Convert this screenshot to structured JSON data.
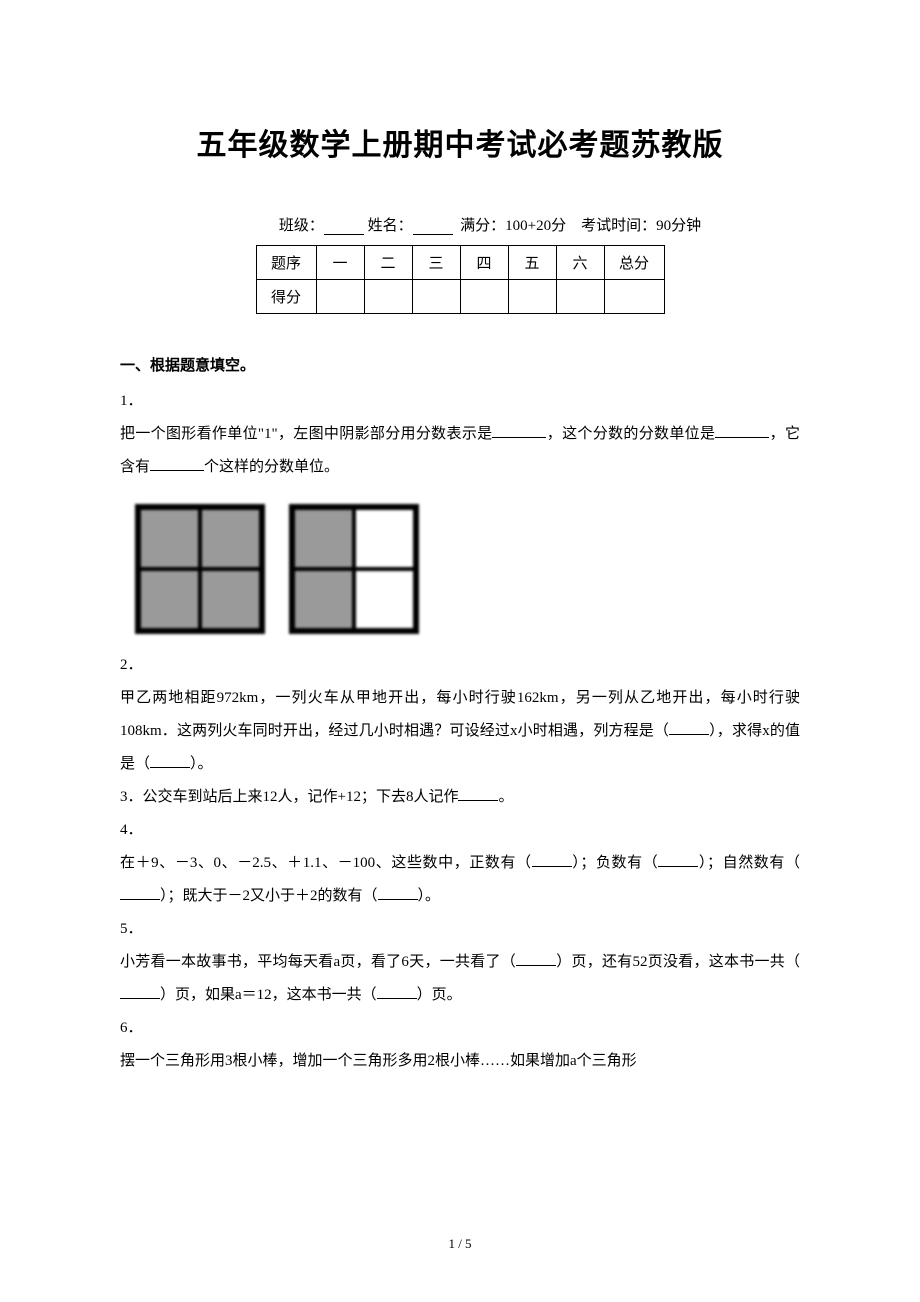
{
  "title": "五年级数学上册期中考试必考题苏教版",
  "info_line": {
    "class_label": "班级：",
    "name_label": "姓名：",
    "full_score_label": "满分：100+20分",
    "time_label": "考试时间：90分钟"
  },
  "score_table": {
    "row1": [
      "题序",
      "一",
      "二",
      "三",
      "四",
      "五",
      "六",
      "总分"
    ],
    "row2_label": "得分"
  },
  "section1_heading": "一、根据题意填空。",
  "q1": {
    "num": "1．",
    "text_a": "把一个图形看作单位\"1\"，左图中阴影部分用分数表示是",
    "text_b": "，这个分数的分数单位是",
    "text_c": "，它含有",
    "text_d": "个这样的分数单位。"
  },
  "figure": {
    "left": {
      "cells": [
        true,
        true,
        true,
        true
      ],
      "border_color": "#000000",
      "shade_color": "#9a9a9a",
      "bg_color": "#ffffff"
    },
    "right": {
      "cells": [
        true,
        false,
        true,
        false
      ],
      "border_color": "#000000",
      "shade_color": "#9a9a9a",
      "bg_color": "#ffffff"
    }
  },
  "q2": {
    "num": "2．",
    "text_a": "甲乙两地相距972km，一列火车从甲地开出，每小时行驶162km，另一列从乙地开出，每小时行驶108km．这两列火车同时开出，经过几小时相遇？可设经过x小时相遇，列方程是（",
    "text_b": "），求得x的值是（",
    "text_c": "）。"
  },
  "q3": {
    "num": "3．",
    "text_a": "公交车到站后上来12人，记作+12；下去8人记作",
    "text_b": "。"
  },
  "q4": {
    "num": "4．",
    "text_a": "在＋9、－3、0、－2.5、＋1.1、－100、这些数中，正数有（",
    "text_b": "）；负数有（",
    "text_c": "）；自然数有（",
    "text_d": "）；既大于－2又小于＋2的数有（",
    "text_e": "）。"
  },
  "q5": {
    "num": "5．",
    "text_a": "小芳看一本故事书，平均每天看a页，看了6天，一共看了（",
    "text_b": "）页，还有52页没看，这本书一共（",
    "text_c": "）页，如果a＝12，这本书一共（",
    "text_d": "）页。"
  },
  "q6": {
    "num": "6．",
    "text_a": "摆一个三角形用3根小棒，增加一个三角形多用2根小棒……如果增加a个三角形"
  },
  "footer": "1 / 5"
}
